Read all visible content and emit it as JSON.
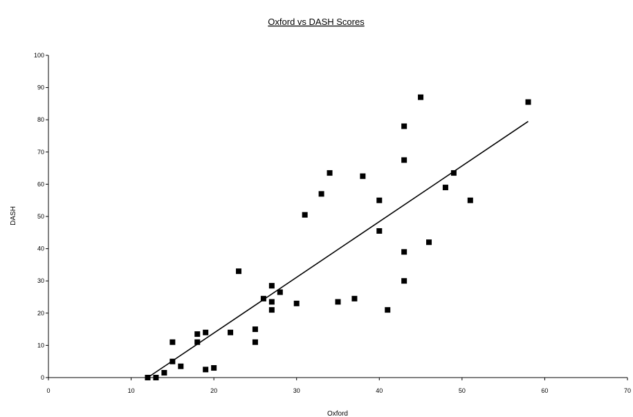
{
  "chart_data": {
    "type": "scatter",
    "title": "Oxford vs DASH Scores",
    "xlabel": "Oxford",
    "ylabel": "DASH",
    "xlim": [
      0,
      70
    ],
    "ylim": [
      0,
      100
    ],
    "xticks": [
      0,
      10,
      20,
      30,
      40,
      50,
      60,
      70
    ],
    "yticks": [
      0,
      10,
      20,
      30,
      40,
      50,
      60,
      70,
      80,
      90,
      100
    ],
    "grid": false,
    "legend": "none",
    "marker_color": "#000000",
    "points": [
      {
        "x": 12,
        "y": 0
      },
      {
        "x": 13,
        "y": 0
      },
      {
        "x": 14,
        "y": 1.5
      },
      {
        "x": 15,
        "y": 5
      },
      {
        "x": 15,
        "y": 11
      },
      {
        "x": 16,
        "y": 3.5
      },
      {
        "x": 18,
        "y": 11
      },
      {
        "x": 18,
        "y": 13.5
      },
      {
        "x": 19,
        "y": 14
      },
      {
        "x": 19,
        "y": 2.5
      },
      {
        "x": 20,
        "y": 3
      },
      {
        "x": 22,
        "y": 14
      },
      {
        "x": 23,
        "y": 33
      },
      {
        "x": 25,
        "y": 15
      },
      {
        "x": 25,
        "y": 11
      },
      {
        "x": 26,
        "y": 24.5
      },
      {
        "x": 27,
        "y": 28.5
      },
      {
        "x": 27,
        "y": 23.5
      },
      {
        "x": 27,
        "y": 21
      },
      {
        "x": 28,
        "y": 26.5
      },
      {
        "x": 30,
        "y": 23
      },
      {
        "x": 31,
        "y": 50.5
      },
      {
        "x": 33,
        "y": 57
      },
      {
        "x": 34,
        "y": 63.5
      },
      {
        "x": 35,
        "y": 23.5
      },
      {
        "x": 37,
        "y": 24.5
      },
      {
        "x": 38,
        "y": 62.5
      },
      {
        "x": 40,
        "y": 55
      },
      {
        "x": 40,
        "y": 45.5
      },
      {
        "x": 41,
        "y": 21
      },
      {
        "x": 43,
        "y": 78
      },
      {
        "x": 43,
        "y": 67.5
      },
      {
        "x": 43,
        "y": 39
      },
      {
        "x": 43,
        "y": 30
      },
      {
        "x": 45,
        "y": 87
      },
      {
        "x": 46,
        "y": 42
      },
      {
        "x": 48,
        "y": 59
      },
      {
        "x": 49,
        "y": 63.5
      },
      {
        "x": 51,
        "y": 55
      },
      {
        "x": 58,
        "y": 85.5
      }
    ],
    "trendline": {
      "x": [
        12,
        58
      ],
      "y": [
        0,
        79.5
      ]
    }
  }
}
